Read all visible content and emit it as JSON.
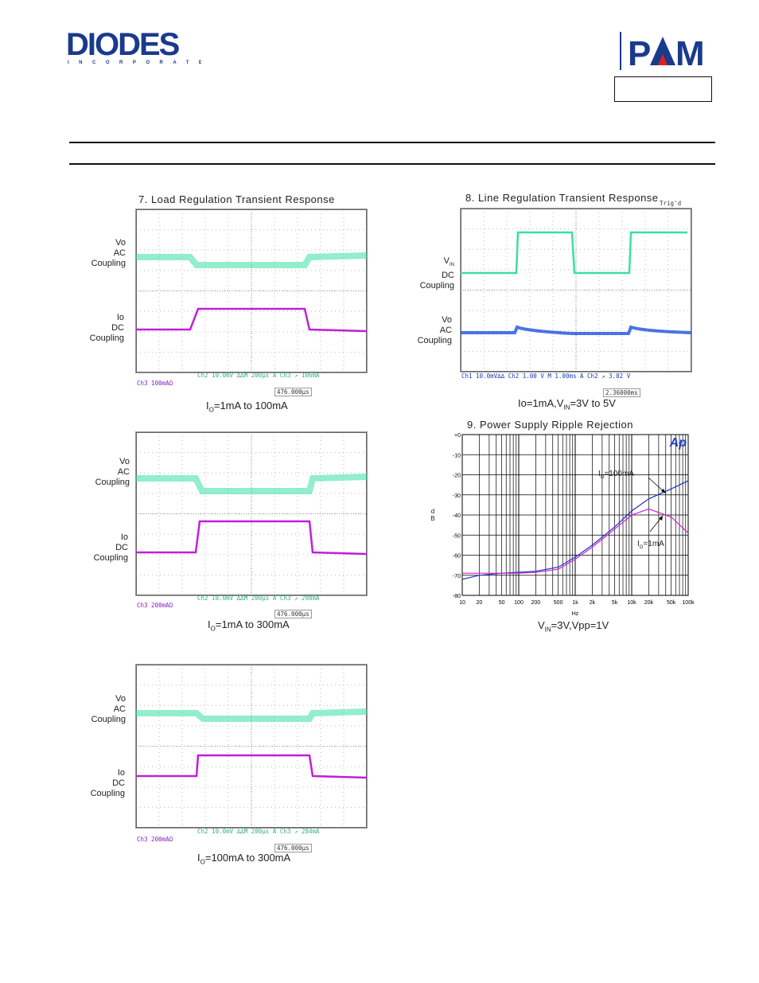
{
  "header": {
    "diodes_logo": "DIODES",
    "diodes_sub": "INCORPORATED",
    "pam_logo": "PAM"
  },
  "colors": {
    "vo": "#39e0a0",
    "io": "#c020d8",
    "vin": "#39e0a0",
    "vo_blue": "#1f4fe0",
    "blue_curve": "#2030c0",
    "magenta_curve": "#d020d0"
  },
  "fig7": {
    "title": "7. Load Regulation Transient Response",
    "label_vo": "Vo\nAC\nCoupling",
    "label_io": "Io\nDC\nCoupling",
    "status_left": "Ch3  100mAΩ",
    "status_right": "Ch2  10.0mV ∆∆M 200µs  A  Ch3 ↗ 106mA",
    "trigger": "476.000µs",
    "caption": "I",
    "caption_sub": "O",
    "caption_rest": "=1mA to 100mA"
  },
  "fig8": {
    "title": "8. Line Regulation Transient Response",
    "trig": "Trig'd",
    "label_vin_main": "V",
    "label_vin_sub": "IN",
    "label_vin_rest": "DC\nCoupling",
    "label_vo": "Vo\nAC\nCoupling",
    "status": "Ch1  10.0mV∆∆ Ch2  1.00 V   M 1.00ms  A  Ch2 ↗  3.02 V",
    "trigger": "2.36000ms",
    "caption_a": "Io=1mA,V",
    "caption_sub": "IN",
    "caption_b": "=3V to 5V"
  },
  "fig9": {
    "title": "9. Power Supply Ripple Rejection",
    "ylabel": "d\nB",
    "xlabel": "Hz",
    "ap_logo": "Ap",
    "curve_label_a": "I",
    "curve_label_a_sub": "O",
    "curve_label_a_rest": "=100mA",
    "curve_label_b": "I",
    "curve_label_b_sub": "O",
    "curve_label_b_rest": "=1mA",
    "caption_a": "V",
    "caption_sub": "IN",
    "caption_b": "=3V,Vpp=1V"
  },
  "fig_mid": {
    "label_vo": "Vo\nAC\nCoupling",
    "label_io": "Io\nDC\nCoupling",
    "status_left": "Ch3  200mAΩ",
    "status_right": "Ch2  10.0mV ∆∆M 200µs  A  Ch3 ↗  298mA",
    "trigger": "476.000µs",
    "caption": "I",
    "caption_sub": "O",
    "caption_rest": "=1mA to 300mA"
  },
  "fig_bot": {
    "label_vo": "Vo\nAC\nCoupling",
    "label_io": "Io\nDC\nCoupling",
    "status_left": "Ch3  200mAΩ",
    "status_right": "Ch2  10.0mV ∆∆M 200µs  A  Ch3 ↗  284mA",
    "trigger": "476.000µs",
    "caption": "I",
    "caption_sub": "O",
    "caption_rest": "=100mA to 300mA"
  },
  "chart_data": {
    "type": "line",
    "title": "9. Power Supply Ripple Rejection",
    "xlabel": "Hz",
    "ylabel": "dB",
    "xscale": "log",
    "xlim": [
      10,
      100000
    ],
    "ylim": [
      -80,
      0
    ],
    "x_ticks": [
      "10",
      "20",
      "50",
      "100",
      "200",
      "500",
      "1k",
      "2k",
      "5k",
      "10k",
      "20k",
      "50k",
      "100k"
    ],
    "y_ticks": [
      "+0",
      "-10",
      "-20",
      "-30",
      "-40",
      "-50",
      "-60",
      "-70",
      "-80"
    ],
    "series": [
      {
        "name": "IO=100mA",
        "x": [
          10,
          20,
          50,
          100,
          200,
          500,
          1000,
          2000,
          5000,
          10000,
          20000,
          50000,
          100000
        ],
        "y": [
          -72,
          -70,
          -69,
          -68.5,
          -68,
          -66,
          -61,
          -55,
          -46,
          -38,
          -32,
          -27,
          -23
        ]
      },
      {
        "name": "IO=1mA",
        "x": [
          10,
          20,
          50,
          100,
          200,
          500,
          1000,
          2000,
          5000,
          10000,
          20000,
          50000,
          100000
        ],
        "y": [
          -69,
          -69,
          -69,
          -69,
          -68.5,
          -67,
          -62,
          -56,
          -47,
          -40,
          -37,
          -41,
          -49
        ]
      }
    ]
  }
}
